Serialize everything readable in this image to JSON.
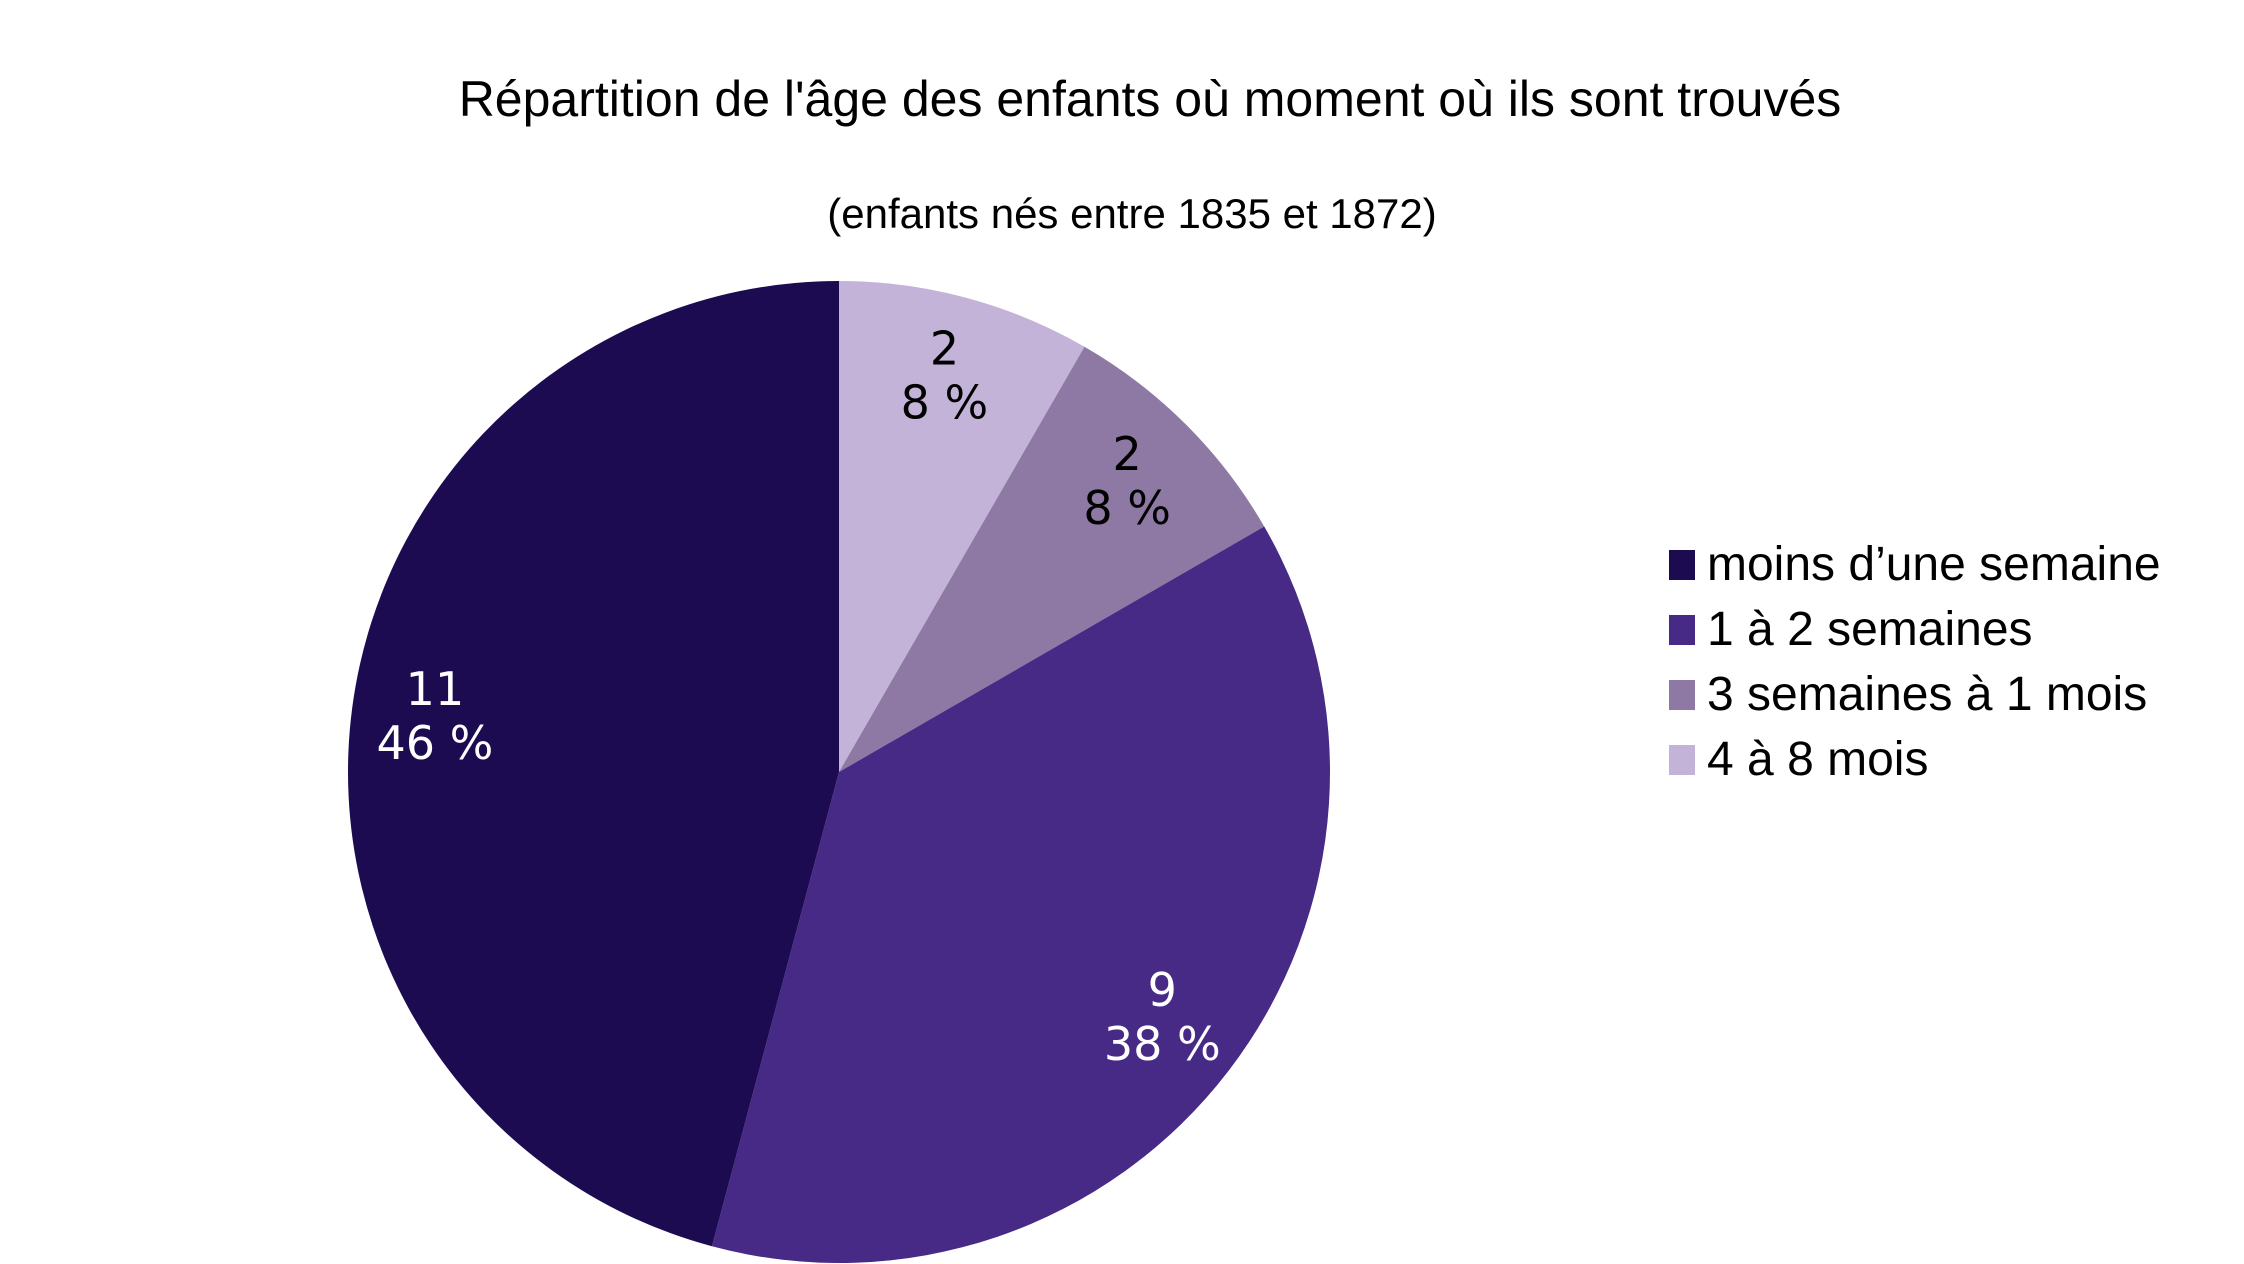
{
  "chart_data": {
    "type": "pie",
    "title": "Répartition de l'âge des enfants où moment où ils sont trouvés",
    "subtitle": "(enfants nés entre 1835 et 1872)",
    "slices": [
      {
        "label": "moins d’une semaine",
        "value": 11,
        "percent_label": "46 %",
        "color": "#1d0b52",
        "text_color": "#ffffff"
      },
      {
        "label": "1 à 2 semaines",
        "value": 9,
        "percent_label": "38 %",
        "color": "#462a86",
        "text_color": "#ffffff"
      },
      {
        "label": "3 semaines à 1 mois",
        "value": 2,
        "percent_label": "8 %",
        "color": "#8d79a3",
        "text_color": "#000000"
      },
      {
        "label": "4 à 8 mois",
        "value": 2,
        "percent_label": "8 %",
        "color": "#c3b3d8",
        "text_color": "#000000"
      }
    ],
    "legend_position": "right"
  }
}
